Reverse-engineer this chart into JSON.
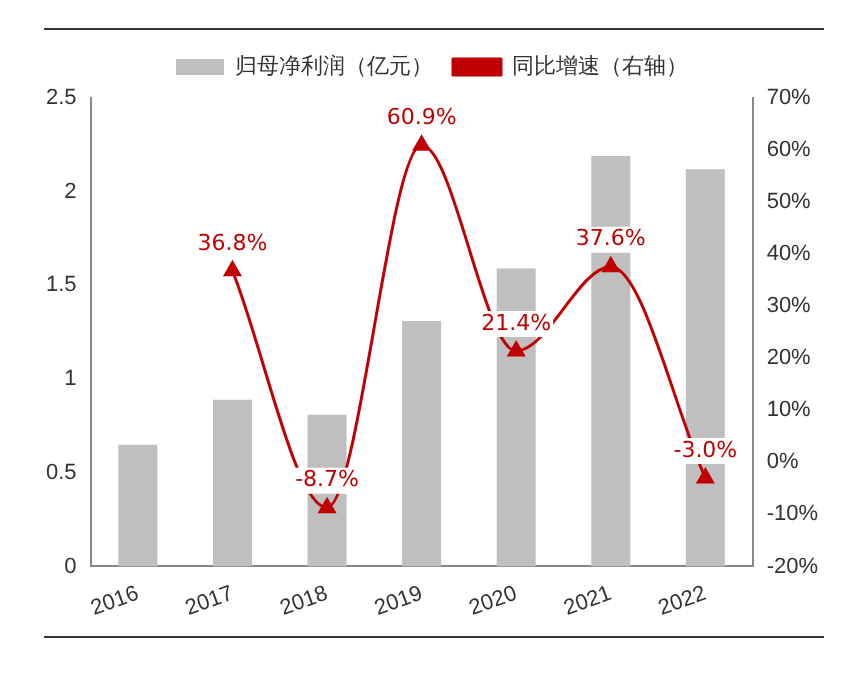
{
  "chart_data": {
    "type": "bar",
    "categories": [
      "2016",
      "2017",
      "2018",
      "2019",
      "2020",
      "2021",
      "2022"
    ],
    "series": [
      {
        "name": "归母净利润（亿元）",
        "color": "#bfbfbf",
        "values": [
          0.65,
          0.89,
          0.81,
          1.31,
          1.59,
          2.19,
          2.12
        ]
      },
      {
        "name": "同比增速（右轴）",
        "type": "line",
        "axis": "y2",
        "color": "#c00000",
        "values": [
          null,
          36.8,
          -8.7,
          60.9,
          21.4,
          37.6,
          -3.0
        ],
        "value_labels": [
          null,
          "36.8%",
          "-8.7%",
          "60.9%",
          "21.4%",
          "37.6%",
          "-3.0%"
        ]
      }
    ],
    "ylim": [
      0,
      2.5
    ],
    "yticks": [
      0,
      0.5,
      1,
      1.5,
      2,
      2.5
    ],
    "y2lim": [
      -20,
      70
    ],
    "y2ticks": [
      {
        "value": -20,
        "label": "-20%"
      },
      {
        "value": -10,
        "label": "-10%"
      },
      {
        "value": 0,
        "label": "0%"
      },
      {
        "value": 10,
        "label": "10%"
      },
      {
        "value": 20,
        "label": "20%"
      },
      {
        "value": 30,
        "label": "30%"
      },
      {
        "value": 40,
        "label": "40%"
      },
      {
        "value": 50,
        "label": "50%"
      },
      {
        "value": 60,
        "label": "60%"
      },
      {
        "value": 70,
        "label": "70%"
      }
    ],
    "marker": "triangle",
    "legend": "top",
    "grid": false
  }
}
